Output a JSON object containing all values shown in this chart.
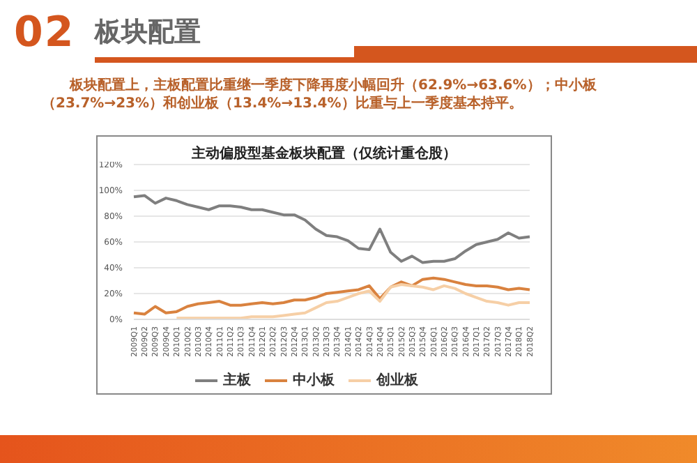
{
  "chart_data": {
    "type": "line",
    "title": "主动偏股型基金板块配置（仅统计重仓股）",
    "subtitle": "板块配置上，主板配置比重继一季度下降再度小幅回升（62.9%→63.6%）；中小板（23.7%→23%）和创业板（13.4%→13.4%）比重与上一季度基本持平。",
    "annotations": [
      "02",
      "板块配置"
    ],
    "categories": [
      "2009Q1",
      "2009Q2",
      "2009Q3",
      "2009Q4",
      "2010Q1",
      "2010Q2",
      "2010Q3",
      "2010Q4",
      "2011Q1",
      "2011Q2",
      "2011Q3",
      "2011Q4",
      "2012Q1",
      "2012Q2",
      "2012Q3",
      "2012Q4",
      "2013Q1",
      "2013Q2",
      "2013Q3",
      "2013Q4",
      "2014Q1",
      "2014Q2",
      "2014Q3",
      "2014Q4",
      "2015Q1",
      "2015Q2",
      "2015Q3",
      "2015Q4",
      "2016Q1",
      "2016Q2",
      "2016Q3",
      "2016Q4",
      "2017Q1",
      "2017Q2",
      "2017Q3",
      "2017Q4",
      "2018Q1",
      "2018Q2"
    ],
    "series": [
      {
        "name": "主板",
        "color": "#7f7f7f",
        "values": [
          95,
          96,
          90,
          94,
          92,
          89,
          87,
          85,
          88,
          88,
          87,
          85,
          85,
          83,
          81,
          81,
          77,
          70,
          65,
          64,
          61,
          55,
          54,
          70,
          52,
          45,
          49,
          44,
          45,
          45,
          47,
          53,
          58,
          60,
          62,
          67,
          63,
          64
        ]
      },
      {
        "name": "中小板",
        "color": "#d9823f",
        "values": [
          5,
          4,
          10,
          5,
          6,
          10,
          12,
          13,
          14,
          11,
          11,
          12,
          13,
          12,
          13,
          15,
          15,
          17,
          20,
          21,
          22,
          23,
          26,
          16,
          25,
          29,
          26,
          31,
          32,
          31,
          29,
          27,
          26,
          26,
          25,
          23,
          24,
          23
        ]
      },
      {
        "name": "创业板",
        "color": "#f6cfa6",
        "values": [
          null,
          null,
          null,
          null,
          1,
          1,
          1,
          1,
          1,
          1,
          1,
          2,
          2,
          2,
          3,
          4,
          5,
          9,
          13,
          14,
          17,
          20,
          22,
          14,
          25,
          27,
          26,
          25,
          23,
          26,
          24,
          20,
          17,
          14,
          13,
          11,
          13,
          13
        ]
      }
    ],
    "ylim": [
      0,
      120
    ],
    "yticks": [
      {
        "value": 0,
        "label": "0%"
      },
      {
        "value": 20,
        "label": "20%"
      },
      {
        "value": 40,
        "label": "40%"
      },
      {
        "value": 60,
        "label": "60%"
      },
      {
        "value": 80,
        "label": "80%"
      },
      {
        "value": 100,
        "label": "100%"
      },
      {
        "value": 120,
        "label": "120%"
      }
    ],
    "grid": "y",
    "legend": "bottom",
    "marker": "none",
    "line_style": "solid"
  }
}
